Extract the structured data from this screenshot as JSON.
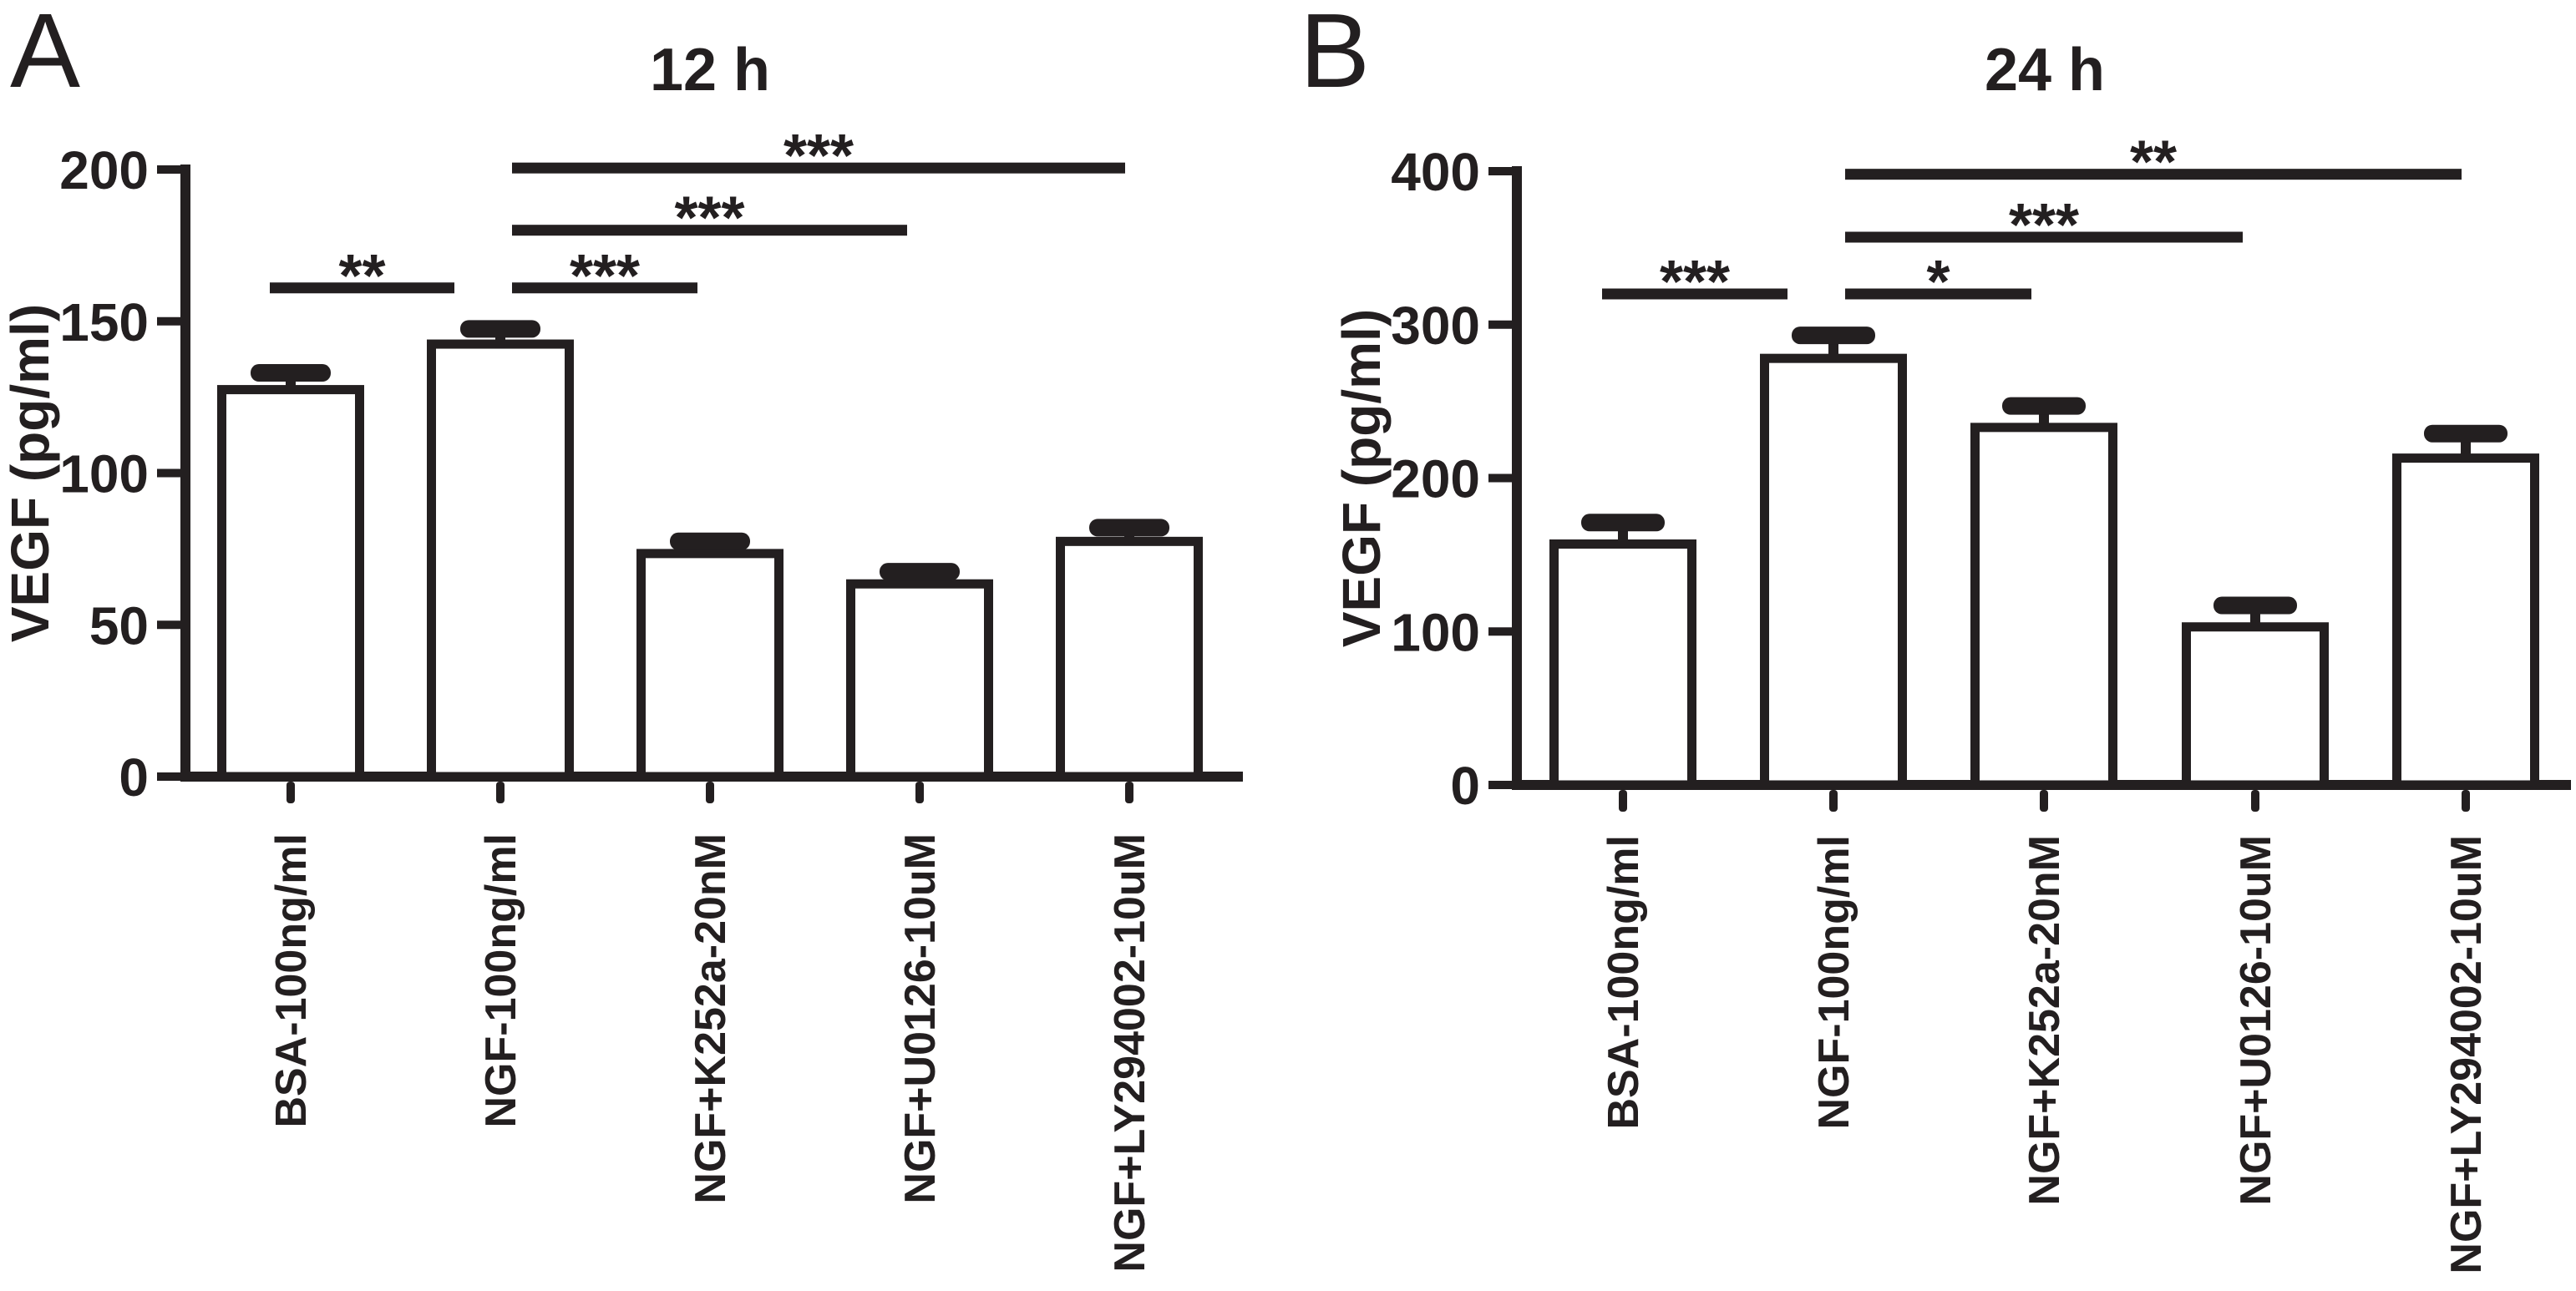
{
  "colors": {
    "ink": "#231f20",
    "background": "#ffffff",
    "bar_fill": "#ffffff"
  },
  "chart_data": [
    {
      "type": "bar",
      "panel_label": "A",
      "title": "12 h",
      "ylabel": "VEGF（pg/ml）",
      "xlabel": "",
      "ylim": [
        0,
        200
      ],
      "yticks": [
        0,
        50,
        100,
        150,
        200
      ],
      "grid": "off",
      "legend": "none",
      "categories": [
        "BSA-100ng/ml",
        "NGF-100ng/ml",
        "NGF+K252a-20nM",
        "NGF+U0126-10uM",
        "NGF+LY294002-10uM"
      ],
      "values": [
        129,
        144,
        75,
        65,
        79
      ],
      "errors": [
        4,
        3.5,
        2.5,
        2.5,
        3
      ],
      "error_type": "upper SEM caps",
      "significance": [
        {
          "group1": 0,
          "group2": 1,
          "label": "**",
          "bar_y": 161
        },
        {
          "group1": 1,
          "group2": 2,
          "label": "***",
          "bar_y": 161
        },
        {
          "group1": 1,
          "group2": 3,
          "label": "***",
          "bar_y": 180
        },
        {
          "group1": 1,
          "group2": 4,
          "label": "***",
          "bar_y": 200.5
        }
      ]
    },
    {
      "type": "bar",
      "panel_label": "B",
      "title": "24 h",
      "ylabel": "VEGF（pg/ml）",
      "xlabel": "",
      "ylim": [
        0,
        400
      ],
      "yticks": [
        0,
        100,
        200,
        300,
        400
      ],
      "grid": "off",
      "legend": "none",
      "categories": [
        "BSA-100ng/ml",
        "NGF-100ng/ml",
        "NGF+K252a-20nM",
        "NGF+U0126-10uM",
        "NGF+LY294002-10uM"
      ],
      "values": [
        160,
        281,
        236,
        106,
        216
      ],
      "errors": [
        11,
        12,
        11,
        11,
        13
      ],
      "error_type": "upper SEM caps",
      "significance": [
        {
          "group1": 0,
          "group2": 1,
          "label": "***",
          "bar_y": 320
        },
        {
          "group1": 1,
          "group2": 2,
          "label": "*",
          "bar_y": 320
        },
        {
          "group1": 1,
          "group2": 3,
          "label": "***",
          "bar_y": 357
        },
        {
          "group1": 1,
          "group2": 4,
          "label": "**",
          "bar_y": 398
        }
      ]
    }
  ]
}
